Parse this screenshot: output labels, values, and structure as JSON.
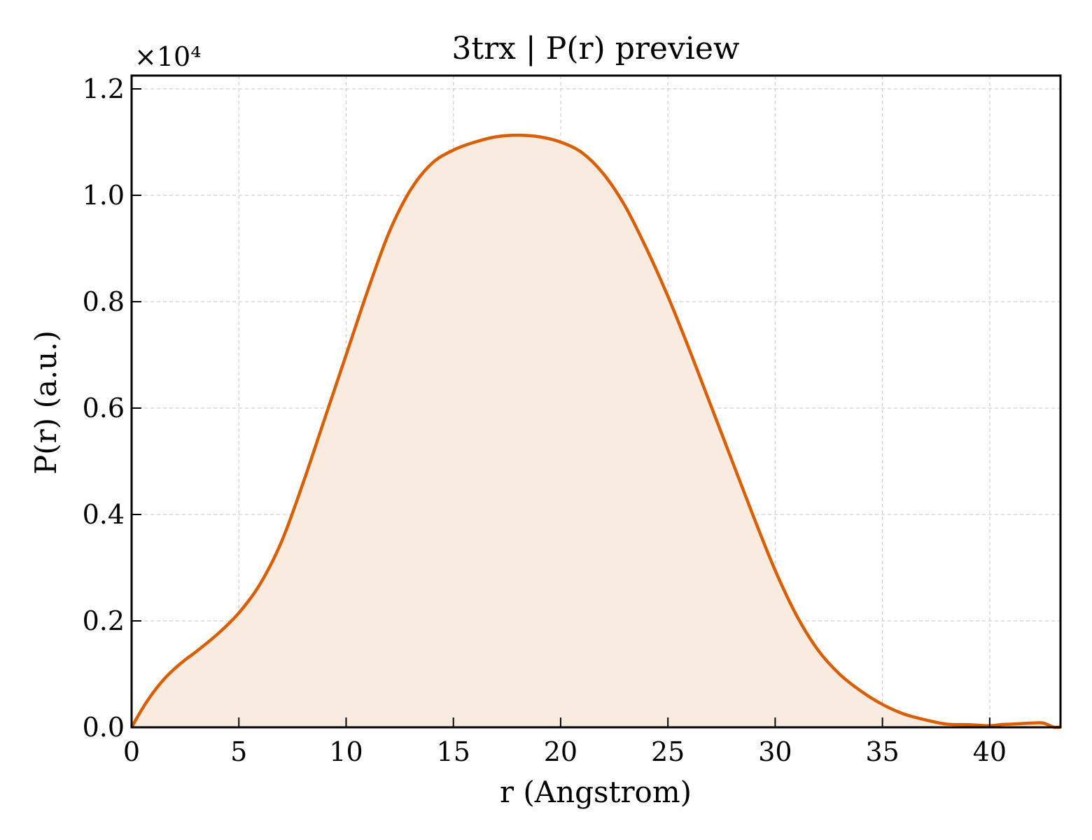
{
  "chart_data": {
    "type": "area",
    "title": "3trx | P(r) preview",
    "xlabel": "r (Angstrom)",
    "ylabel": "P(r) (a.u.)",
    "y_multiplier_label": "×10⁴",
    "xlim": [
      0,
      43.3
    ],
    "ylim": [
      0,
      12250
    ],
    "x_ticks": [
      0,
      5,
      10,
      15,
      20,
      25,
      30,
      35,
      40
    ],
    "x_tick_labels": [
      "0",
      "5",
      "10",
      "15",
      "20",
      "25",
      "30",
      "35",
      "40"
    ],
    "y_ticks": [
      0,
      2000,
      4000,
      6000,
      8000,
      10000,
      12000
    ],
    "y_tick_labels": [
      "0.0",
      "0.2",
      "0.4",
      "0.6",
      "0.8",
      "1.0",
      "1.2"
    ],
    "grid": true,
    "line_color": "#d95f02",
    "fill_color": "#faebe0",
    "series": [
      {
        "x": [
          0,
          0.5,
          1,
          1.5,
          2,
          2.5,
          3,
          4,
          5,
          6,
          7,
          8,
          9,
          10,
          11,
          12,
          13,
          14,
          15,
          16,
          17,
          18,
          19,
          20,
          21,
          22,
          23,
          24,
          25,
          26,
          27,
          28,
          29,
          30,
          31,
          32,
          33,
          34,
          35,
          36,
          37,
          38,
          39,
          40,
          40.5,
          41,
          41.5,
          42,
          42.5,
          43,
          43.3
        ],
        "y": [
          0,
          350,
          650,
          900,
          1100,
          1270,
          1420,
          1750,
          2150,
          2700,
          3500,
          4600,
          5800,
          7000,
          8200,
          9300,
          10100,
          10600,
          10850,
          11000,
          11100,
          11130,
          11100,
          11000,
          10800,
          10400,
          9800,
          9000,
          8100,
          7100,
          6050,
          5000,
          3950,
          2950,
          2100,
          1450,
          1000,
          680,
          430,
          250,
          140,
          60,
          50,
          30,
          50,
          60,
          70,
          80,
          80,
          0,
          0
        ]
      }
    ]
  }
}
